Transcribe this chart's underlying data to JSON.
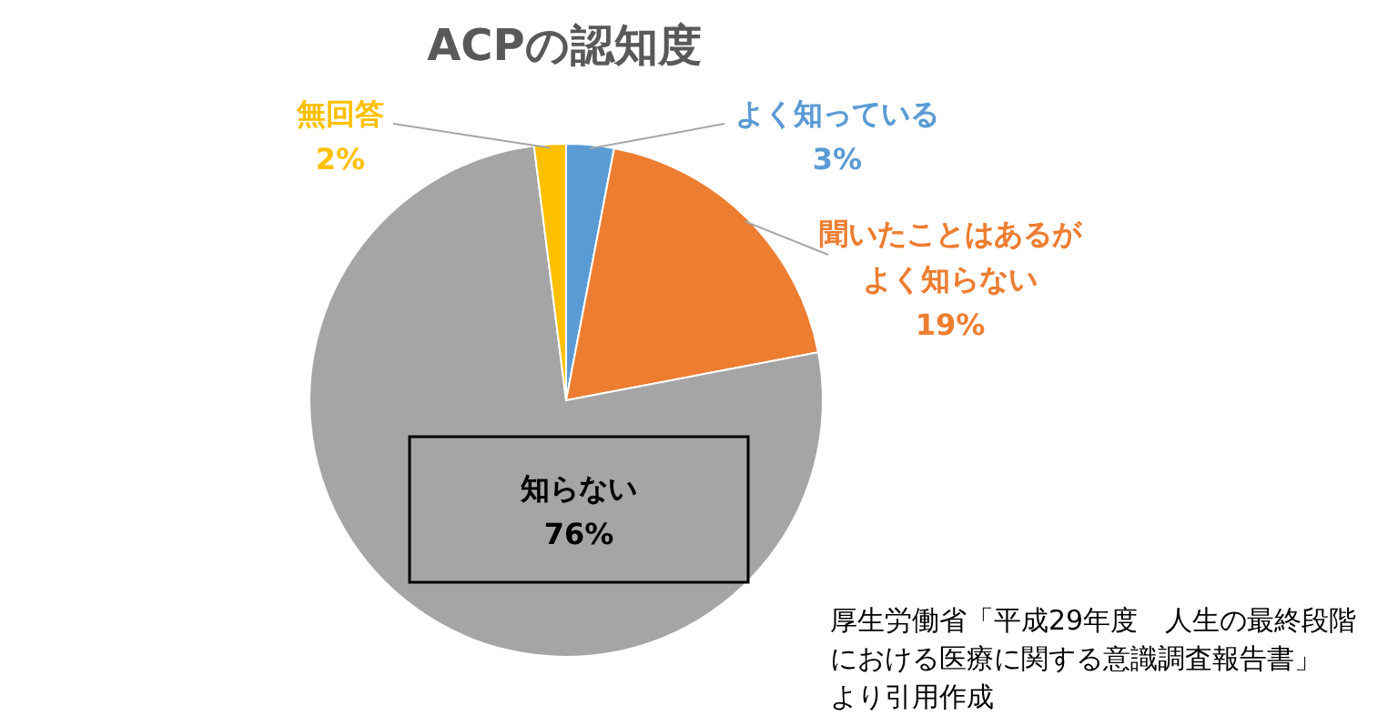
{
  "chart_data": {
    "type": "pie",
    "title": "ACPの認知度",
    "categories": [
      "よく知っている",
      "聞いたことはあるがよく知らない",
      "知らない",
      "無回答"
    ],
    "value_labels": [
      "3%",
      "19%",
      "76%",
      "2%"
    ],
    "values": [
      3,
      19,
      76,
      2
    ],
    "colors": [
      "#5b9bd5",
      "#ed7d31",
      "#a5a5a5",
      "#ffc000"
    ],
    "annotations": [
      "厚生労働省「平成29年度　人生の最終段階における医療に関する意識調査報告書」より引用作成"
    ]
  }
}
